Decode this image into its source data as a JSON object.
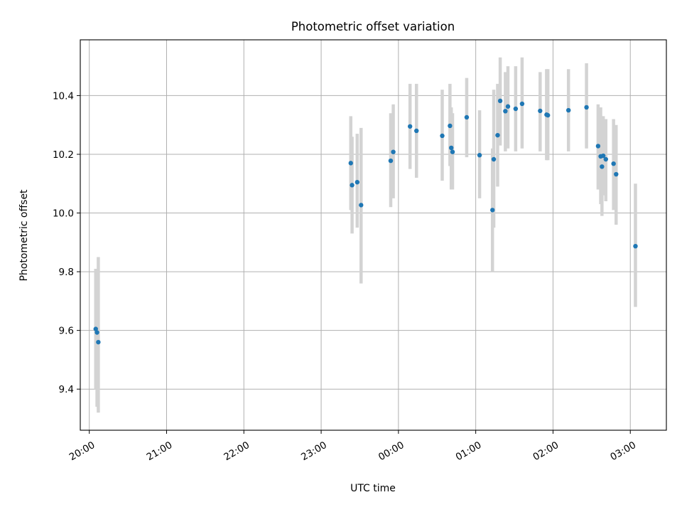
{
  "chart_data": {
    "type": "scatter",
    "title": "Photometric offset variation",
    "xlabel": "UTC time",
    "ylabel": "Photometric offset",
    "x_is_time": true,
    "xlim": [
      "19:53",
      "03:28"
    ],
    "ylim": [
      9.26,
      10.59
    ],
    "grid": true,
    "marker_color": "#1f77b4",
    "errorbar_color": "#d3d3d3",
    "x_ticks": [
      "20:00",
      "21:00",
      "22:00",
      "23:00",
      "00:00",
      "01:00",
      "02:00",
      "03:00"
    ],
    "y_ticks": [
      9.4,
      9.6,
      9.8,
      10.0,
      10.2,
      10.4
    ],
    "y_tick_labels": [
      "9.4",
      "9.6",
      "9.8",
      "10.0",
      "10.2",
      "10.4"
    ],
    "points": [
      {
        "t": "20:05",
        "y": 9.605,
        "ylo": 9.4,
        "yhi": 9.81
      },
      {
        "t": "20:06",
        "y": 9.593,
        "ylo": 9.34,
        "yhi": 9.81
      },
      {
        "t": "20:07",
        "y": 9.56,
        "ylo": 9.32,
        "yhi": 9.85
      },
      {
        "t": "23:23",
        "y": 10.17,
        "ylo": 10.01,
        "yhi": 10.33
      },
      {
        "t": "23:24",
        "y": 10.095,
        "ylo": 9.93,
        "yhi": 10.26
      },
      {
        "t": "23:28",
        "y": 10.105,
        "ylo": 9.95,
        "yhi": 10.27
      },
      {
        "t": "23:31",
        "y": 10.027,
        "ylo": 9.76,
        "yhi": 10.29
      },
      {
        "t": "23:54",
        "y": 10.178,
        "ylo": 10.02,
        "yhi": 10.34
      },
      {
        "t": "23:56",
        "y": 10.208,
        "ylo": 10.05,
        "yhi": 10.37
      },
      {
        "t": "00:09",
        "y": 10.295,
        "ylo": 10.15,
        "yhi": 10.44
      },
      {
        "t": "00:14",
        "y": 10.28,
        "ylo": 10.12,
        "yhi": 10.44
      },
      {
        "t": "00:34",
        "y": 10.263,
        "ylo": 10.11,
        "yhi": 10.42
      },
      {
        "t": "00:40",
        "y": 10.297,
        "ylo": 10.16,
        "yhi": 10.44
      },
      {
        "t": "00:41",
        "y": 10.222,
        "ylo": 10.08,
        "yhi": 10.36
      },
      {
        "t": "00:42",
        "y": 10.208,
        "ylo": 10.08,
        "yhi": 10.34
      },
      {
        "t": "00:53",
        "y": 10.326,
        "ylo": 10.19,
        "yhi": 10.46
      },
      {
        "t": "01:03",
        "y": 10.197,
        "ylo": 10.05,
        "yhi": 10.35
      },
      {
        "t": "01:13",
        "y": 10.01,
        "ylo": 9.8,
        "yhi": 10.22
      },
      {
        "t": "01:14",
        "y": 10.183,
        "ylo": 9.95,
        "yhi": 10.42
      },
      {
        "t": "01:17",
        "y": 10.265,
        "ylo": 10.09,
        "yhi": 10.44
      },
      {
        "t": "01:19",
        "y": 10.382,
        "ylo": 10.23,
        "yhi": 10.53
      },
      {
        "t": "01:23",
        "y": 10.347,
        "ylo": 10.21,
        "yhi": 10.48
      },
      {
        "t": "01:25",
        "y": 10.363,
        "ylo": 10.22,
        "yhi": 10.5
      },
      {
        "t": "01:31",
        "y": 10.355,
        "ylo": 10.21,
        "yhi": 10.5
      },
      {
        "t": "01:36",
        "y": 10.372,
        "ylo": 10.22,
        "yhi": 10.53
      },
      {
        "t": "01:50",
        "y": 10.348,
        "ylo": 10.21,
        "yhi": 10.48
      },
      {
        "t": "01:55",
        "y": 10.335,
        "ylo": 10.18,
        "yhi": 10.49
      },
      {
        "t": "01:56",
        "y": 10.333,
        "ylo": 10.18,
        "yhi": 10.49
      },
      {
        "t": "02:12",
        "y": 10.35,
        "ylo": 10.21,
        "yhi": 10.49
      },
      {
        "t": "02:26",
        "y": 10.36,
        "ylo": 10.22,
        "yhi": 10.51
      },
      {
        "t": "02:35",
        "y": 10.228,
        "ylo": 10.08,
        "yhi": 10.37
      },
      {
        "t": "02:37",
        "y": 10.193,
        "ylo": 10.03,
        "yhi": 10.36
      },
      {
        "t": "02:38",
        "y": 10.158,
        "ylo": 9.99,
        "yhi": 10.33
      },
      {
        "t": "02:39",
        "y": 10.195,
        "ylo": 10.06,
        "yhi": 10.33
      },
      {
        "t": "02:41",
        "y": 10.183,
        "ylo": 10.04,
        "yhi": 10.32
      },
      {
        "t": "02:47",
        "y": 10.168,
        "ylo": 10.01,
        "yhi": 10.32
      },
      {
        "t": "02:49",
        "y": 10.132,
        "ylo": 9.96,
        "yhi": 10.3
      },
      {
        "t": "03:04",
        "y": 9.887,
        "ylo": 9.68,
        "yhi": 10.1
      }
    ]
  }
}
